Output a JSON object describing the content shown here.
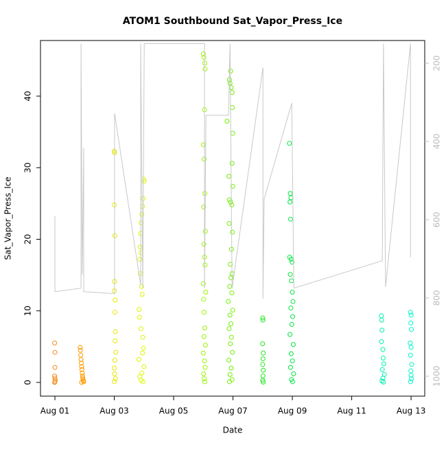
{
  "chart_data": {
    "type": "scatter",
    "title": "ATOM1 Southbound Sat_Vapor_Press_Ice",
    "x_label": "Date",
    "y_label": "Sat_Vapor_Press_Ice",
    "xlim": [
      0.514,
      13.46
    ],
    "ylim": [
      -1.92,
      47.77
    ],
    "y2lim": [
      1051,
      142
    ],
    "xticks": [
      {
        "value": 1,
        "label": "Aug 01"
      },
      {
        "value": 3,
        "label": "Aug 03"
      },
      {
        "value": 5,
        "label": "Aug 05"
      },
      {
        "value": 7,
        "label": "Aug 07"
      },
      {
        "value": 9,
        "label": "Aug 09"
      },
      {
        "value": 11,
        "label": "Aug 11"
      },
      {
        "value": 13,
        "label": "Aug 13"
      }
    ],
    "yticks": [
      0,
      10,
      20,
      30,
      40
    ],
    "y2ticks": [
      200,
      400,
      600,
      800,
      1000
    ],
    "y2_tick_color": "#bbbbbb",
    "series": [
      {
        "color": "#f28e1c",
        "x": [
          0.99,
          1.0,
          1.0,
          0.99,
          1.0,
          1.01,
          1.0,
          0.99
        ],
        "values": [
          5.5,
          4.2,
          2.1,
          0.9,
          0.6,
          0.3,
          0.1,
          0
        ]
      },
      {
        "color": "#ff9900",
        "x": [
          1.85,
          1.86,
          1.87,
          1.88,
          1.89,
          1.9,
          1.91,
          1.92,
          1.93,
          1.94,
          1.95,
          1.96,
          1.97,
          1.9
        ],
        "values": [
          4.9,
          4.5,
          3.8,
          3.2,
          2.7,
          2.2,
          1.8,
          1.3,
          0.9,
          0.6,
          0.4,
          0.2,
          0.1,
          0
        ]
      },
      {
        "color": "#e6e600",
        "x": [
          3.0,
          3.01,
          3.0,
          3.02,
          3.01,
          3.0,
          3.03,
          3.02,
          3.04,
          3.03,
          3.05,
          3.02,
          3.0,
          3.01,
          3.04,
          3.0
        ],
        "values": [
          32.3,
          32.1,
          24.8,
          20.5,
          14.1,
          12.8,
          11.5,
          9.8,
          7.1,
          5.8,
          4.2,
          3.1,
          2.0,
          1.2,
          0.5,
          0.1
        ]
      },
      {
        "color": "#ddf500",
        "x": [
          3.99,
          4.01,
          3.97,
          3.95,
          3.93,
          3.91,
          3.89,
          3.87,
          3.9,
          3.86,
          3.88,
          3.92,
          3.94,
          3.84,
          3.85,
          3.9,
          3.96,
          3.98,
          3.95,
          3.83,
          4.0,
          3.93,
          3.86,
          3.91,
          3.97
        ],
        "values": [
          28.4,
          28.1,
          25.7,
          24.6,
          23.5,
          22.3,
          20.8,
          18.9,
          18.1,
          17.2,
          15.2,
          13.4,
          12.3,
          10.2,
          9.1,
          7.5,
          6.3,
          4.8,
          4.1,
          3.2,
          2.2,
          1.3,
          0.8,
          0.3,
          0.1
        ]
      },
      {
        "color": "#99f500",
        "x": [
          6.0,
          6.02,
          6.05,
          6.06,
          6.04,
          6.0,
          6.03,
          6.05,
          6.01,
          6.07,
          6.02,
          6.04,
          6.06,
          6.0,
          6.08,
          6.01,
          6.03,
          6.05,
          6.02,
          6.07,
          6.0,
          6.04,
          6.06,
          6.01,
          6.03,
          6.05
        ],
        "values": [
          45.9,
          45.4,
          44.6,
          43.8,
          38.1,
          33.2,
          31.2,
          26.4,
          24.5,
          21.1,
          19.3,
          17.5,
          16.4,
          13.8,
          12.6,
          11.6,
          9.8,
          7.6,
          6.4,
          5.2,
          4.1,
          3.0,
          2.1,
          1.2,
          0.5,
          0.1
        ]
      },
      {
        "color": "#70f000",
        "x": [
          6.92,
          6.88,
          6.9,
          6.94,
          6.97,
          6.98,
          6.8,
          6.99,
          6.97,
          6.86,
          6.99,
          6.88,
          6.92,
          6.96,
          6.87,
          6.98,
          6.95,
          6.91,
          6.97,
          6.93,
          6.89,
          6.96,
          6.84,
          6.99,
          6.9,
          6.93,
          6.87,
          6.95,
          6.91,
          6.98,
          6.86,
          6.94,
          6.9,
          6.97,
          6.88
        ],
        "values": [
          43.5,
          42.3,
          41.8,
          41.2,
          40.5,
          38.4,
          36.5,
          34.8,
          30.6,
          28.8,
          27.4,
          25.5,
          25.2,
          24.8,
          22.2,
          21.0,
          18.6,
          16.5,
          15.2,
          14.6,
          13.4,
          12.5,
          11.3,
          10.1,
          9.4,
          8.2,
          7.5,
          6.3,
          5.4,
          4.2,
          3.1,
          2.0,
          1.1,
          0.4,
          0.1
        ]
      },
      {
        "color": "#22e622",
        "x": [
          8.0,
          8.01,
          8.0,
          8.02,
          8.01,
          8.0,
          8.02,
          8.01,
          8.0,
          8.02
        ],
        "values": [
          9.0,
          8.7,
          5.4,
          4.1,
          3.3,
          2.5,
          1.7,
          0.9,
          0.3,
          0.05
        ]
      },
      {
        "color": "#00e640",
        "x": [
          8.9,
          8.93,
          8.95,
          8.92,
          8.94,
          8.91,
          8.96,
          8.99,
          8.93,
          8.97,
          9.0,
          9.02,
          8.95,
          9.01,
          8.98,
          8.92,
          9.03,
          8.96,
          9.0,
          8.94,
          9.04,
          8.97,
          9.01
        ],
        "values": [
          33.4,
          26.4,
          25.8,
          25.2,
          22.8,
          17.5,
          17.2,
          16.8,
          15.1,
          14.2,
          12.6,
          11.3,
          10.4,
          9.2,
          8.1,
          6.7,
          5.3,
          4.0,
          3.0,
          2.1,
          1.2,
          0.4,
          0.1
        ]
      },
      {
        "color": "#00f0b0",
        "x": [
          12.0,
          12.01,
          12.02,
          12.0,
          12.05,
          12.06,
          12.08,
          12.03,
          12.1,
          12.05,
          12.02,
          12.07
        ],
        "values": [
          9.3,
          8.7,
          7.3,
          5.7,
          4.6,
          3.4,
          2.6,
          1.8,
          1.1,
          0.6,
          0.2,
          0.05
        ]
      },
      {
        "color": "#00f5c8",
        "x": [
          12.98,
          13.0,
          12.99,
          13.01,
          12.97,
          13.0,
          12.98,
          13.02,
          12.99,
          13.0,
          13.01,
          12.98
        ],
        "values": [
          9.8,
          9.4,
          8.3,
          7.4,
          5.5,
          4.9,
          3.8,
          2.5,
          1.6,
          1.0,
          0.5,
          0.1
        ]
      },
      {
        "color": "#c8c8c8",
        "type": "line",
        "axis": "y2",
        "x": [
          1.0,
          1.0,
          1.88,
          1.88,
          1.92,
          1.97,
          1.97,
          3.01,
          3.01,
          3.89,
          3.89,
          3.96,
          4.01,
          6.04,
          6.04,
          6.09,
          6.85,
          6.9,
          6.97,
          8.01,
          8.01,
          8.05,
          8.98,
          9.05,
          12.03,
          12.07,
          12.14,
          12.98,
          12.98
        ],
        "values": [
          591,
          784,
          775,
          150,
          740,
          416,
          784,
          789,
          328,
          767,
          150,
          775,
          150,
          150,
          775,
          333,
          333,
          150,
          775,
          211,
          802,
          547,
          302,
          775,
          705,
          150,
          772,
          150,
          696
        ]
      }
    ]
  }
}
